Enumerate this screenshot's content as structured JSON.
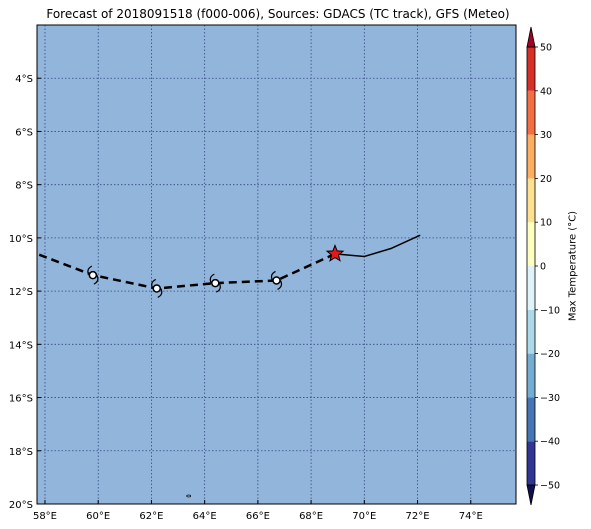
{
  "title": "Forecast of 2018091518 (f000-006), Sources: GDACS (TC track), GFS (Meteo)",
  "colors": {
    "ocean": "#91b5db",
    "grid": "#334a80",
    "track": "#000000",
    "star_fill": "#e31a1c",
    "storm_fill": "#ffffff"
  },
  "map": {
    "lon_range": [
      57.7,
      75.7
    ],
    "lat_range": [
      -20.0,
      -2.0
    ],
    "lon_ticks": [
      {
        "value": 58,
        "label": "58°E"
      },
      {
        "value": 60,
        "label": "60°E"
      },
      {
        "value": 62,
        "label": "62°E"
      },
      {
        "value": 64,
        "label": "64°E"
      },
      {
        "value": 66,
        "label": "66°E"
      },
      {
        "value": 68,
        "label": "68°E"
      },
      {
        "value": 70,
        "label": "70°E"
      },
      {
        "value": 72,
        "label": "72°E"
      },
      {
        "value": 74,
        "label": "74°E"
      }
    ],
    "lat_ticks": [
      {
        "value": -4,
        "label": "4°S"
      },
      {
        "value": -6,
        "label": "6°S"
      },
      {
        "value": -8,
        "label": "8°S"
      },
      {
        "value": -10,
        "label": "10°S"
      },
      {
        "value": -12,
        "label": "12°S"
      },
      {
        "value": -14,
        "label": "14°S"
      },
      {
        "value": -16,
        "label": "16°S"
      },
      {
        "value": -18,
        "label": "18°S"
      },
      {
        "value": -20,
        "label": "20°S"
      }
    ],
    "observed_track": [
      [
        72.1,
        -9.9
      ],
      [
        71.0,
        -10.4
      ],
      [
        70.0,
        -10.7
      ],
      [
        68.9,
        -10.6
      ]
    ],
    "forecast_track": [
      [
        68.9,
        -10.6
      ],
      [
        66.7,
        -11.6
      ],
      [
        64.4,
        -11.7
      ],
      [
        62.2,
        -11.9
      ],
      [
        59.8,
        -11.4
      ],
      [
        57.7,
        -10.6
      ]
    ],
    "current_position": [
      68.9,
      -10.6
    ],
    "storm_markers": [
      [
        66.7,
        -11.6
      ],
      [
        64.4,
        -11.7
      ],
      [
        62.2,
        -11.9
      ],
      [
        59.8,
        -11.4
      ]
    ]
  },
  "colorbar": {
    "label": "Max Temperature (°C)",
    "min": -55,
    "max": 55,
    "ticks": [
      {
        "value": 50,
        "label": "50"
      },
      {
        "value": 40,
        "label": "40"
      },
      {
        "value": 30,
        "label": "30"
      },
      {
        "value": 20,
        "label": "20"
      },
      {
        "value": 10,
        "label": "10"
      },
      {
        "value": 0,
        "label": "0"
      },
      {
        "value": -10,
        "label": "−10"
      },
      {
        "value": -20,
        "label": "−20"
      },
      {
        "value": -30,
        "label": "−30"
      },
      {
        "value": -40,
        "label": "−40"
      },
      {
        "value": -50,
        "label": "−50"
      }
    ],
    "bins": [
      {
        "from": -50,
        "to": -40,
        "color": "#313695"
      },
      {
        "from": -40,
        "to": -30,
        "color": "#4575b4"
      },
      {
        "from": -30,
        "to": -20,
        "color": "#74add1"
      },
      {
        "from": -20,
        "to": -10,
        "color": "#abd9e9"
      },
      {
        "from": -10,
        "to": 0,
        "color": "#e0f3f8"
      },
      {
        "from": 0,
        "to": 10,
        "color": "#ffffbf"
      },
      {
        "from": 10,
        "to": 20,
        "color": "#fee090"
      },
      {
        "from": 20,
        "to": 30,
        "color": "#fdae61"
      },
      {
        "from": 30,
        "to": 40,
        "color": "#f46d43"
      },
      {
        "from": 40,
        "to": 50,
        "color": "#d73027"
      }
    ],
    "extend_min_color": "#10104f",
    "extend_max_color": "#a50026"
  }
}
